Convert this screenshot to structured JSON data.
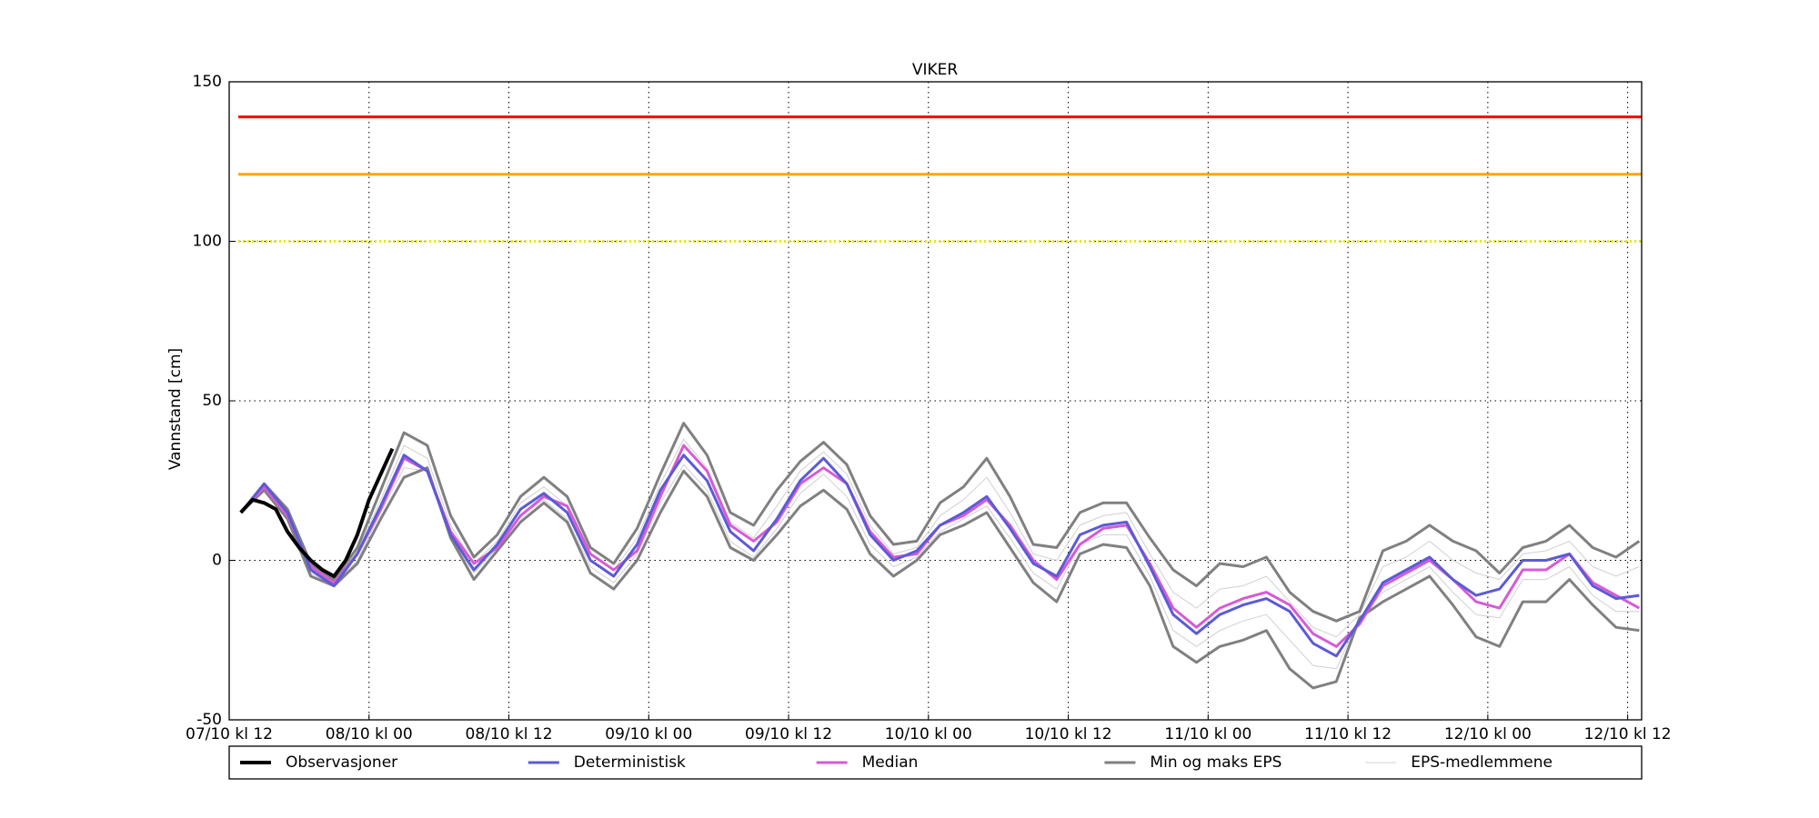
{
  "chart_data": {
    "type": "line",
    "title": "VIKER",
    "y_label": "Vannstand [cm]",
    "xlim": [
      0,
      121.2
    ],
    "ylim": [
      -50,
      150
    ],
    "xticks": [
      {
        "value": 0,
        "label": "07/10 kl 12"
      },
      {
        "value": 12,
        "label": "08/10 kl 00"
      },
      {
        "value": 24,
        "label": "08/10 kl 12"
      },
      {
        "value": 36,
        "label": "09/10 kl 00"
      },
      {
        "value": 48,
        "label": "09/10 kl 12"
      },
      {
        "value": 60,
        "label": "10/10 kl 00"
      },
      {
        "value": 72,
        "label": "10/10 kl 12"
      },
      {
        "value": 84,
        "label": "11/10 kl 00"
      },
      {
        "value": 96,
        "label": "11/10 kl 12"
      },
      {
        "value": 108,
        "label": "12/10 kl 00"
      },
      {
        "value": 120,
        "label": "12/10 kl 12"
      }
    ],
    "yticks": [
      -50,
      0,
      50,
      100,
      150
    ],
    "grid": true,
    "legend": "below",
    "hlines": [
      {
        "value": 139,
        "color": "#ff0000",
        "style": "solid"
      },
      {
        "value": 121,
        "color": "#ffa500",
        "style": "solid"
      },
      {
        "value": 100,
        "color": "#e8e800",
        "style": "dotted"
      }
    ],
    "x": [
      1,
      3,
      5,
      7,
      9,
      11,
      13,
      15,
      17,
      19,
      21,
      23,
      25,
      27,
      29,
      31,
      33,
      35,
      37,
      39,
      41,
      43,
      45,
      47,
      49,
      51,
      53,
      55,
      57,
      59,
      61,
      63,
      65,
      67,
      69,
      71,
      73,
      75,
      77,
      79,
      81,
      83,
      85,
      87,
      89,
      91,
      93,
      95,
      97,
      99,
      101,
      103,
      105,
      107,
      109,
      111,
      113,
      115,
      117,
      119,
      121
    ],
    "series": [
      {
        "name": "Observasjoner",
        "color": "#000000",
        "line_width": 4,
        "x": [
          1,
          2,
          3,
          4,
          5,
          6,
          7,
          8,
          9,
          10,
          11,
          12,
          13,
          14
        ],
        "values": [
          15,
          19,
          18,
          16,
          9,
          4,
          0,
          -3,
          -5,
          0,
          8,
          19,
          27,
          35
        ]
      },
      {
        "name": "Deterministisk",
        "color": "#5b5bd6",
        "line_width": 3,
        "values": [
          15,
          24,
          15,
          -3,
          -8,
          2,
          17,
          33,
          28,
          8,
          -3,
          5,
          16,
          21,
          15,
          0,
          -5,
          5,
          22,
          33,
          25,
          9,
          3,
          13,
          25,
          32,
          24,
          8,
          0,
          3,
          11,
          15,
          20,
          10,
          -1,
          -5,
          8,
          11,
          12,
          -2,
          -17,
          -23,
          -17,
          -14,
          -12,
          -16,
          -26,
          -30,
          -19,
          -7,
          -3,
          1,
          -6,
          -11,
          -9,
          0,
          0,
          2,
          -8,
          -12,
          -11
        ]
      },
      {
        "name": "Median",
        "color": "#d65bd6",
        "line_width": 3,
        "values": [
          15,
          23,
          14,
          -2,
          -7,
          2,
          16,
          32,
          28,
          9,
          -1,
          4,
          14,
          20,
          17,
          2,
          -3,
          3,
          20,
          36,
          28,
          11,
          6,
          12,
          24,
          29,
          24,
          9,
          1,
          2,
          11,
          14,
          19,
          11,
          0,
          -6,
          5,
          10,
          11,
          -1,
          -15,
          -21,
          -15,
          -12,
          -10,
          -14,
          -23,
          -27,
          -20,
          -8,
          -4,
          0,
          -6,
          -13,
          -15,
          -3,
          -3,
          2,
          -7,
          -11,
          -15
        ]
      },
      {
        "name": "Min og maks EPS",
        "color": "#808080",
        "line_width": 3,
        "values": [
          [
            15,
            22,
            13,
            -5,
            -8,
            -1,
            13,
            26,
            29,
            7,
            -6,
            3,
            12,
            18,
            12,
            -4,
            -9,
            0,
            15,
            28,
            20,
            4,
            0,
            8,
            17,
            22,
            16,
            2,
            -5,
            0,
            8,
            11,
            15,
            4,
            -7,
            -13,
            2,
            5,
            4,
            -8,
            -27,
            -32,
            -27,
            -25,
            -22,
            -34,
            -40,
            -38,
            -18,
            -13,
            -9,
            -5,
            -14,
            -24,
            -27,
            -13,
            -13,
            -6,
            -14,
            -21,
            -22
          ],
          [
            15,
            24,
            16,
            -1,
            -6,
            4,
            22,
            40,
            36,
            14,
            1,
            8,
            20,
            26,
            20,
            4,
            -1,
            10,
            27,
            43,
            33,
            15,
            11,
            22,
            31,
            37,
            30,
            14,
            5,
            6,
            18,
            23,
            32,
            20,
            5,
            4,
            15,
            18,
            18,
            7,
            -3,
            -8,
            -1,
            -2,
            1,
            -10,
            -16,
            -19,
            -16,
            3,
            6,
            11,
            6,
            3,
            -4,
            4,
            6,
            11,
            4,
            1,
            6
          ]
        ]
      },
      {
        "name": "EPS-medlemmene",
        "color": "#d0d0d0",
        "line_width": 1,
        "values": [
          [
            15,
            24,
            15,
            -2,
            -7,
            3,
            19,
            36,
            32,
            11,
            -1,
            6,
            18,
            23,
            17,
            2,
            -3,
            7,
            24,
            38,
            29,
            12,
            7,
            17,
            28,
            34,
            27,
            11,
            2,
            4,
            14,
            19,
            26,
            15,
            2,
            0,
            11,
            14,
            15,
            2,
            -10,
            -15,
            -9,
            -8,
            -5,
            -13,
            -21,
            -24,
            -17,
            -2,
            1,
            6,
            0,
            -4,
            -6,
            2,
            3,
            6,
            -2,
            -5,
            -2
          ],
          [
            15,
            23,
            14,
            -4,
            -8,
            0,
            15,
            29,
            28,
            7,
            -4,
            4,
            14,
            19,
            13,
            -2,
            -7,
            2,
            18,
            30,
            22,
            6,
            1,
            10,
            21,
            27,
            20,
            5,
            -2,
            1,
            9,
            13,
            17,
            7,
            -4,
            -9,
            5,
            8,
            8,
            -5,
            -22,
            -27,
            -22,
            -19,
            -17,
            -25,
            -33,
            -34,
            -18,
            -10,
            -6,
            -2,
            -10,
            -17,
            -18,
            -6,
            -6,
            -2,
            -11,
            -16,
            -16
          ]
        ]
      }
    ]
  }
}
